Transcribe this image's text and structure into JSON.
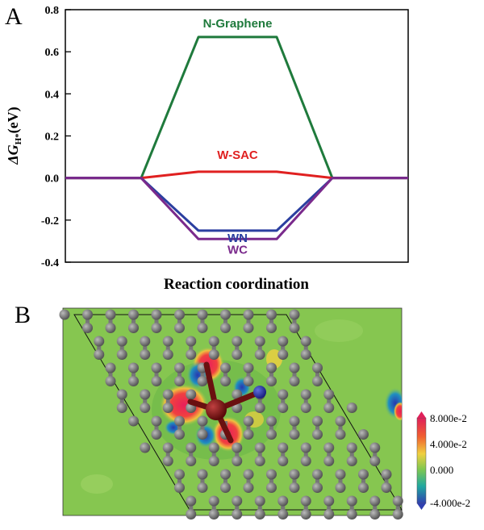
{
  "panels": {
    "a_letter": "A",
    "b_letter": "B"
  },
  "chart_data": {
    "type": "line",
    "xlabel": "Reaction coordination",
    "ylabel_main": "ΔG",
    "ylabel_sub": "H*",
    "ylabel_unit": "(eV)",
    "ylim": [
      -0.4,
      0.8
    ],
    "yticks": [
      "-0.4",
      "-0.2",
      "0.0",
      "0.2",
      "0.4",
      "0.6",
      "0.8"
    ],
    "grid": false,
    "x_stages": [
      0,
      1,
      2,
      3,
      4,
      5
    ],
    "series": [
      {
        "name": "N-Graphene",
        "color": "#1f7a3c",
        "values": [
          0,
          0,
          0.67,
          0.67,
          0,
          0
        ]
      },
      {
        "name": "W-SAC",
        "color": "#e02020",
        "values": [
          0,
          0,
          0.03,
          0.03,
          0,
          0
        ]
      },
      {
        "name": "WN",
        "color": "#2b3fa0",
        "values": [
          0,
          0,
          -0.25,
          -0.25,
          0,
          0
        ]
      },
      {
        "name": "WC",
        "color": "#7a2a8c",
        "values": [
          0,
          0,
          -0.29,
          -0.29,
          0,
          0
        ]
      }
    ]
  },
  "colorbar": {
    "labels": [
      "8.000e-2",
      "4.000e-2",
      "0.000",
      "-4.000e-2"
    ],
    "colors": [
      "#e0205a",
      "#f06030",
      "#f0d040",
      "#80c850",
      "#20a8a0",
      "#3040b0"
    ]
  }
}
